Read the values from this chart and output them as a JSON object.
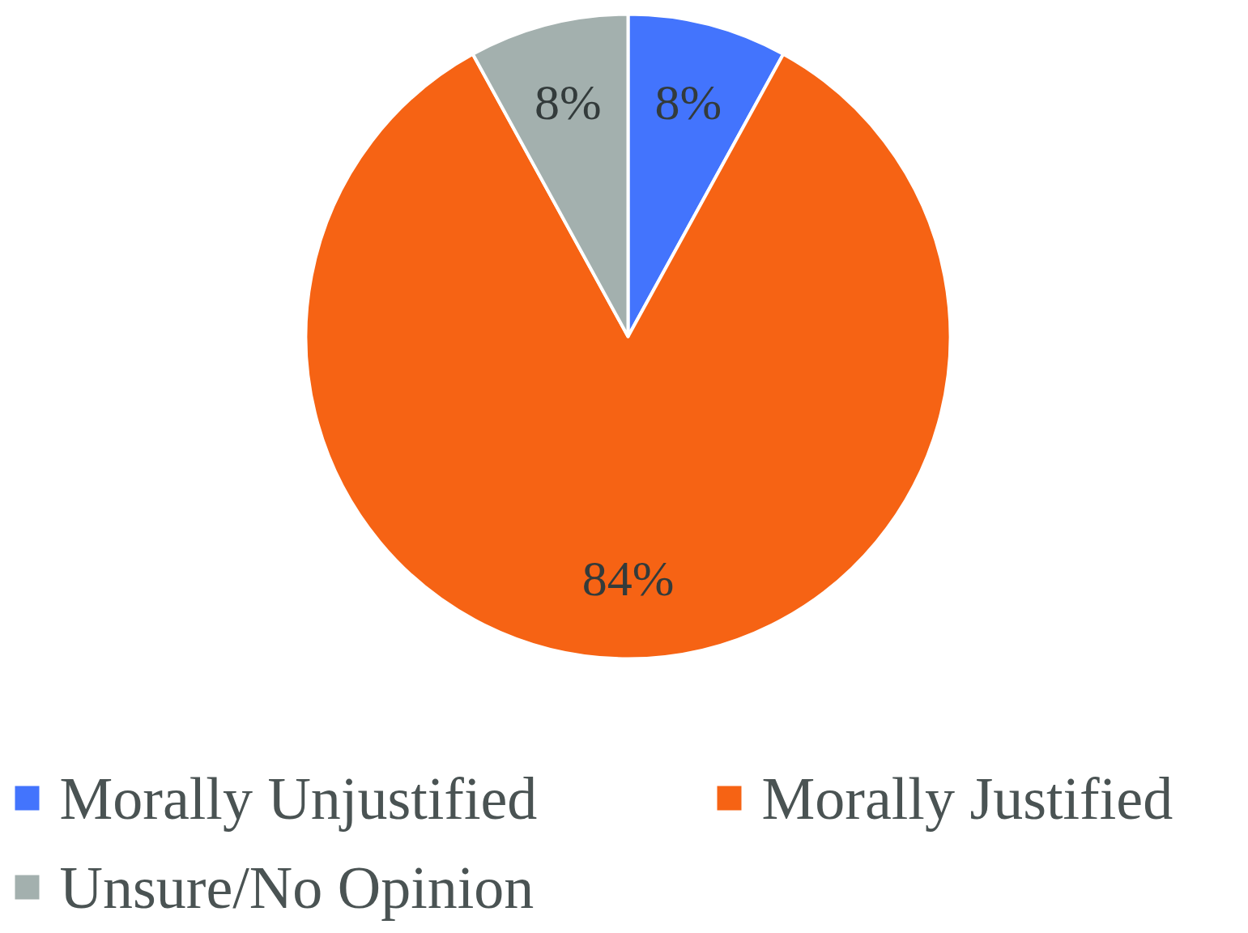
{
  "chart_data": {
    "type": "pie",
    "categories": [
      "Morally Unjustified",
      "Morally Justified",
      "Unsure/No Opinion"
    ],
    "values": [
      8,
      84,
      8
    ],
    "colors": [
      "#4374fd",
      "#f66314",
      "#a3b0ae"
    ],
    "value_labels": [
      "8%",
      "84%",
      "8%"
    ],
    "legend": "bottom"
  }
}
